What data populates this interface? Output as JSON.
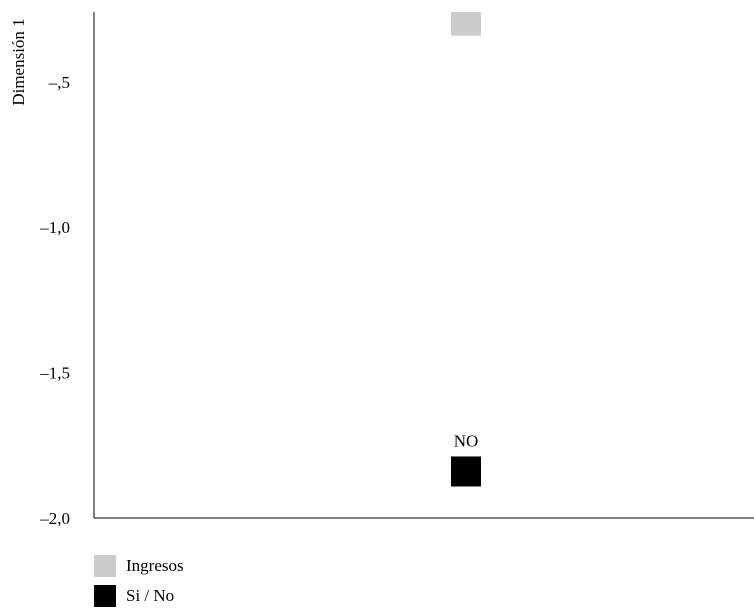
{
  "chart_data": {
    "type": "scatter",
    "ylabel": "Dimensión 1",
    "xlabel": "",
    "ylim": [
      -2.0,
      -0.26
    ],
    "yticks": [
      {
        "value": -0.5,
        "label": "–,5"
      },
      {
        "value": -1.0,
        "label": "–1,0"
      },
      {
        "value": -1.5,
        "label": "–1,5"
      },
      {
        "value": -2.0,
        "label": "–2,0"
      }
    ],
    "grid": false,
    "legend_position": "bottom-left",
    "series": [
      {
        "name": "Ingresos",
        "color": "#cccccc",
        "marker": "square",
        "points": [
          {
            "y": -0.29,
            "label": ""
          }
        ]
      },
      {
        "name": "Si / No",
        "color": "#000000",
        "marker": "square",
        "points": [
          {
            "y": -1.84,
            "label": "NO"
          }
        ]
      }
    ]
  },
  "legend": {
    "items": [
      {
        "label": "Ingresos",
        "color": "#cccccc"
      },
      {
        "label": "Si / No",
        "color": "#000000"
      }
    ]
  }
}
